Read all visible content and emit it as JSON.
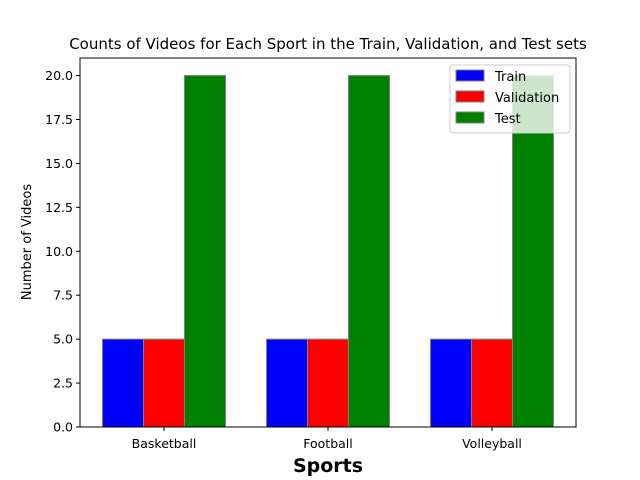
{
  "chart_data": {
    "type": "bar",
    "title": "Counts of Videos for Each Sport in the Train, Validation, and Test sets",
    "xlabel": "Sports",
    "ylabel": "Number of Videos",
    "categories": [
      "Basketball",
      "Football",
      "Volleyball"
    ],
    "series": [
      {
        "name": "Train",
        "values": [
          5,
          5,
          5
        ],
        "color": "#0000ff"
      },
      {
        "name": "Validation",
        "values": [
          5,
          5,
          5
        ],
        "color": "#ff0000"
      },
      {
        "name": "Test",
        "values": [
          20,
          20,
          20
        ],
        "color": "#008000"
      }
    ],
    "ylim": [
      0,
      21
    ],
    "yticks": [
      "0.0",
      "2.5",
      "5.0",
      "7.5",
      "10.0",
      "12.5",
      "15.0",
      "17.5",
      "20.0"
    ],
    "grid": false,
    "legend": "top-right",
    "bar_edge_color": "#808080"
  }
}
